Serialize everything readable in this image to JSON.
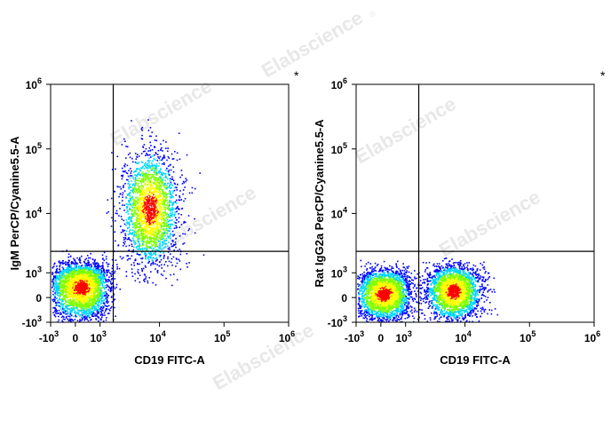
{
  "colors": {
    "axis": "#000000",
    "gate": "#000000",
    "density_low": "#0000ff",
    "density_mid": "#00d4ff",
    "density_high_mid": "#7fff00",
    "density_high": "#ffff00",
    "density_peak": "#ff0000",
    "watermark": "#e6e6e6"
  },
  "watermark_text": "Elabscience",
  "watermark_symbol": "®",
  "chart_data": [
    {
      "type": "scatter",
      "plot_style": "flow-cytometry-pseudocolor-density",
      "xlabel": "CD19 FITC-A",
      "ylabel": "IgM PerCP/Cyanine5.5-A",
      "corner_mark": "*",
      "x_scale": "biexponential",
      "y_scale": "biexponential",
      "xlim": [
        -1000,
        1000000
      ],
      "ylim": [
        -1000,
        1000000
      ],
      "x_ticks": [
        {
          "value": -1000,
          "base": "-10",
          "exp": "3"
        },
        {
          "value": 0,
          "base": "0",
          "exp": ""
        },
        {
          "value": 1000,
          "base": "10",
          "exp": "3"
        },
        {
          "value": 10000,
          "base": "10",
          "exp": "4"
        },
        {
          "value": 100000,
          "base": "10",
          "exp": "5"
        },
        {
          "value": 1000000,
          "base": "10",
          "exp": "6"
        }
      ],
      "y_ticks": [
        {
          "value": -1000,
          "base": "-10",
          "exp": "3"
        },
        {
          "value": 0,
          "base": "0",
          "exp": ""
        },
        {
          "value": 1000,
          "base": "10",
          "exp": "3"
        },
        {
          "value": 10000,
          "base": "10",
          "exp": "4"
        },
        {
          "value": 100000,
          "base": "10",
          "exp": "5"
        },
        {
          "value": 1000000,
          "base": "10",
          "exp": "6"
        }
      ],
      "gate": {
        "x": 1800,
        "y": 2500
      },
      "populations": [
        {
          "x_center": 200,
          "y_center": 400,
          "x_spread": 600,
          "y_spread": 600,
          "count": 3000
        },
        {
          "x_center": 7000,
          "y_center": 12000,
          "x_spread": 0.22,
          "y_spread": 0.45,
          "count": 2400
        }
      ]
    },
    {
      "type": "scatter",
      "plot_style": "flow-cytometry-pseudocolor-density",
      "xlabel": "CD19 FITC-A",
      "ylabel": "Rat IgG2a PerCP/Cyanine5.5-A",
      "corner_mark": "*",
      "x_scale": "biexponential",
      "y_scale": "biexponential",
      "xlim": [
        -1000,
        1000000
      ],
      "ylim": [
        -1000,
        1000000
      ],
      "x_ticks": [
        {
          "value": -1000,
          "base": "-10",
          "exp": "3"
        },
        {
          "value": 0,
          "base": "0",
          "exp": ""
        },
        {
          "value": 1000,
          "base": "10",
          "exp": "3"
        },
        {
          "value": 10000,
          "base": "10",
          "exp": "4"
        },
        {
          "value": 100000,
          "base": "10",
          "exp": "5"
        },
        {
          "value": 1000000,
          "base": "10",
          "exp": "6"
        }
      ],
      "y_ticks": [
        {
          "value": -1000,
          "base": "-10",
          "exp": "3"
        },
        {
          "value": 0,
          "base": "0",
          "exp": ""
        },
        {
          "value": 1000,
          "base": "10",
          "exp": "3"
        },
        {
          "value": 10000,
          "base": "10",
          "exp": "4"
        },
        {
          "value": 100000,
          "base": "10",
          "exp": "5"
        },
        {
          "value": 1000000,
          "base": "10",
          "exp": "6"
        }
      ],
      "gate": {
        "x": 1800,
        "y": 2500
      },
      "populations": [
        {
          "x_center": 100,
          "y_center": 150,
          "x_spread": 550,
          "y_spread": 500,
          "count": 2600
        },
        {
          "x_center": 6500,
          "y_center": 250,
          "x_spread": 0.22,
          "y_spread": 550,
          "count": 2600
        }
      ]
    }
  ]
}
